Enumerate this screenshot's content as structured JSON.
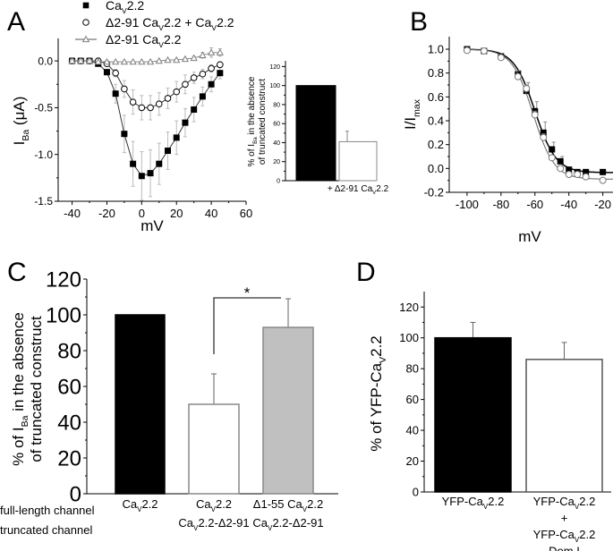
{
  "panel_labels": [
    "A",
    "B",
    "C",
    "D"
  ],
  "chart_data": [
    {
      "panel": "A",
      "type": "line",
      "xlabel": [
        {
          "t": "mV"
        }
      ],
      "ylabel": [
        {
          "t": "I"
        },
        {
          "t": "Ba",
          "sub": true
        },
        {
          "t": " (μA)"
        }
      ],
      "xlim": [
        -48,
        60
      ],
      "ylim": [
        -1.5,
        0.24
      ],
      "xticks": [
        "-40",
        "-20",
        "0",
        "20",
        "40",
        "60"
      ],
      "yticks": [
        "-1.5",
        "-1.0",
        "-0.5",
        "0.0"
      ],
      "legend": "top-left",
      "x": [
        -40,
        -35,
        -30,
        -25,
        -20,
        -15,
        -10,
        -5,
        0,
        5,
        10,
        15,
        20,
        25,
        30,
        35,
        40,
        45
      ],
      "series": [
        {
          "name": [
            {
              "t": "Ca"
            },
            {
              "t": "V",
              "sub": true
            },
            {
              "t": "2.2"
            }
          ],
          "marker": "filled-square",
          "color": "#000000",
          "values": [
            0,
            0,
            0,
            -0.03,
            -0.12,
            -0.35,
            -0.78,
            -1.1,
            -1.23,
            -1.2,
            -1.1,
            -0.96,
            -0.82,
            -0.66,
            -0.52,
            -0.38,
            -0.25,
            -0.13
          ],
          "errors": [
            0,
            0,
            0,
            0.01,
            0.03,
            0.1,
            0.2,
            0.24,
            0.26,
            0.25,
            0.22,
            0.2,
            0.18,
            0.15,
            0.13,
            0.1,
            0.08,
            0.06
          ]
        },
        {
          "name": [
            {
              "t": "Δ2-91 Ca"
            },
            {
              "t": "V",
              "sub": true
            },
            {
              "t": "2.2 + Ca"
            },
            {
              "t": "V",
              "sub": true
            },
            {
              "t": "2.2"
            }
          ],
          "marker": "open-circle",
          "color": "#000000",
          "values": [
            0,
            0,
            0,
            0,
            -0.03,
            -0.13,
            -0.3,
            -0.44,
            -0.5,
            -0.5,
            -0.46,
            -0.4,
            -0.33,
            -0.25,
            -0.18,
            -0.14,
            -0.08,
            -0.04
          ],
          "errors": [
            0,
            0,
            0,
            0,
            0.02,
            0.04,
            0.09,
            0.13,
            0.13,
            0.13,
            0.12,
            0.11,
            0.11,
            0.1,
            0.06,
            0.05,
            0.04,
            0.03
          ]
        },
        {
          "name": [
            {
              "t": "Δ2-91 Ca"
            },
            {
              "t": "V",
              "sub": true
            },
            {
              "t": "2.2"
            }
          ],
          "marker": "open-triangle",
          "color": "#7f7f7f",
          "values": [
            0,
            0,
            0,
            -0.01,
            -0.01,
            -0.01,
            -0.01,
            -0.01,
            -0.01,
            -0.01,
            0,
            0.01,
            0.01,
            0.02,
            0.03,
            0.06,
            0.09,
            0.09
          ],
          "errors": [
            0,
            0,
            0,
            0,
            0,
            0,
            0,
            0,
            0,
            0,
            0.01,
            0.01,
            0.01,
            0.01,
            0.02,
            0.03,
            0.05,
            0.04
          ]
        }
      ]
    },
    {
      "panel": "A-inset",
      "type": "bar",
      "ylabel_lines": [
        [
          {
            "t": "% of I"
          },
          {
            "t": "Ba",
            "sub": true
          },
          {
            "t": " in the absence"
          }
        ],
        [
          {
            "t": "of truncated construct"
          }
        ]
      ],
      "ylim": [
        0,
        126
      ],
      "yticks": [
        "0",
        "20",
        "40",
        "60",
        "80",
        "100",
        "120"
      ],
      "categories": [
        [],
        [
          {
            "t": "+ Δ2-91 Ca"
          },
          {
            "t": "V",
            "sub": true
          },
          {
            "t": "2.2"
          }
        ]
      ],
      "values": [
        100,
        41
      ],
      "errors": [
        0,
        11
      ],
      "colors": [
        "#000000",
        "#ffffff"
      ]
    },
    {
      "panel": "B",
      "type": "scatter",
      "xlabel": [
        {
          "t": "mV"
        }
      ],
      "ylabel": [
        {
          "t": "I/I"
        },
        {
          "t": "max",
          "sub": true
        }
      ],
      "xlim": [
        -110.5,
        -14
      ],
      "ylim": [
        -0.2,
        1.105
      ],
      "xticks": [
        "-100",
        "-80",
        "-60",
        "-40",
        "-20"
      ],
      "yticks": [
        "-0.2",
        "0.0",
        "0.2",
        "0.4",
        "0.6",
        "0.8",
        "1.0"
      ],
      "x": [
        -100,
        -90,
        -80,
        -70,
        -65,
        -60,
        -55,
        -50,
        -45,
        -40,
        -35,
        -30,
        -20
      ],
      "series": [
        {
          "marker": "filled-square",
          "values": [
            1.0,
            0.985,
            0.94,
            0.79,
            0.65,
            0.48,
            0.3,
            0.16,
            0.06,
            -0.01,
            -0.03,
            -0.03,
            -0.03
          ],
          "errors": [
            0,
            0,
            0.01,
            0.03,
            0.07,
            0.08,
            0.09,
            0.06,
            0.04,
            0.02,
            0.01,
            0.01,
            0.01
          ]
        },
        {
          "marker": "open-circle",
          "values": [
            0.99,
            0.985,
            0.93,
            0.77,
            0.67,
            0.45,
            0.26,
            0.09,
            0.0,
            -0.05,
            -0.05,
            -0.07,
            -0.1
          ],
          "errors": [
            0,
            0,
            0.01,
            0.02,
            0.03,
            0.03,
            0.03,
            0.02,
            0.02,
            0.01,
            0.01,
            0.01,
            0.01
          ]
        }
      ]
    },
    {
      "panel": "C",
      "type": "bar",
      "ylabel_lines": [
        [
          {
            "t": "% of I"
          },
          {
            "t": "Ba",
            "sub": true
          },
          {
            "t": " in the absence"
          }
        ],
        [
          {
            "t": "of truncated construct"
          }
        ]
      ],
      "ylim": [
        0,
        120
      ],
      "yticks": [
        "0",
        "20",
        "40",
        "60",
        "80",
        "100",
        "120"
      ],
      "row_labels": [
        "full-length channel",
        "truncated channel"
      ],
      "categories": [
        {
          "full_length": [
            {
              "t": "Ca"
            },
            {
              "t": "V",
              "sub": true
            },
            {
              "t": "2.2"
            }
          ],
          "truncated": []
        },
        {
          "full_length": [
            {
              "t": "Ca"
            },
            {
              "t": "V",
              "sub": true
            },
            {
              "t": "2.2"
            }
          ],
          "truncated": [
            {
              "t": "Ca"
            },
            {
              "t": "V",
              "sub": true
            },
            {
              "t": "2.2-Δ2-91"
            }
          ]
        },
        {
          "full_length": [
            {
              "t": "Δ1-55 Ca"
            },
            {
              "t": "V",
              "sub": true
            },
            {
              "t": "2.2"
            }
          ],
          "truncated": [
            {
              "t": "Ca"
            },
            {
              "t": "V",
              "sub": true
            },
            {
              "t": "2.2-Δ2-91"
            }
          ]
        }
      ],
      "values": [
        100,
        50,
        93
      ],
      "errors": [
        0,
        17,
        16
      ],
      "colors": [
        "#000000",
        "#ffffff",
        "#c0c0c0"
      ],
      "significance": {
        "between": [
          1,
          2
        ],
        "label": "*"
      }
    },
    {
      "panel": "D",
      "type": "bar",
      "ylabel": [
        {
          "t": "% of YFP-Ca"
        },
        {
          "t": "V",
          "sub": true
        },
        {
          "t": "2.2"
        }
      ],
      "ylim": [
        0,
        130
      ],
      "yticks": [
        "0",
        "20",
        "40",
        "60",
        "80",
        "100",
        "120"
      ],
      "categories": [
        [
          [
            {
              "t": "YFP-Ca"
            },
            {
              "t": "V",
              "sub": true
            },
            {
              "t": "2.2"
            }
          ]
        ],
        [
          [
            {
              "t": "YFP-Ca"
            },
            {
              "t": "V",
              "sub": true
            },
            {
              "t": "2.2"
            }
          ],
          [
            {
              "t": "+"
            }
          ],
          [
            {
              "t": "YFP-Ca"
            },
            {
              "t": "V",
              "sub": true
            },
            {
              "t": "2.2"
            }
          ],
          [
            {
              "t": "Dom I"
            }
          ]
        ]
      ],
      "values": [
        100,
        86
      ],
      "errors": [
        10,
        11
      ],
      "colors": [
        "#000000",
        "#ffffff"
      ]
    }
  ]
}
